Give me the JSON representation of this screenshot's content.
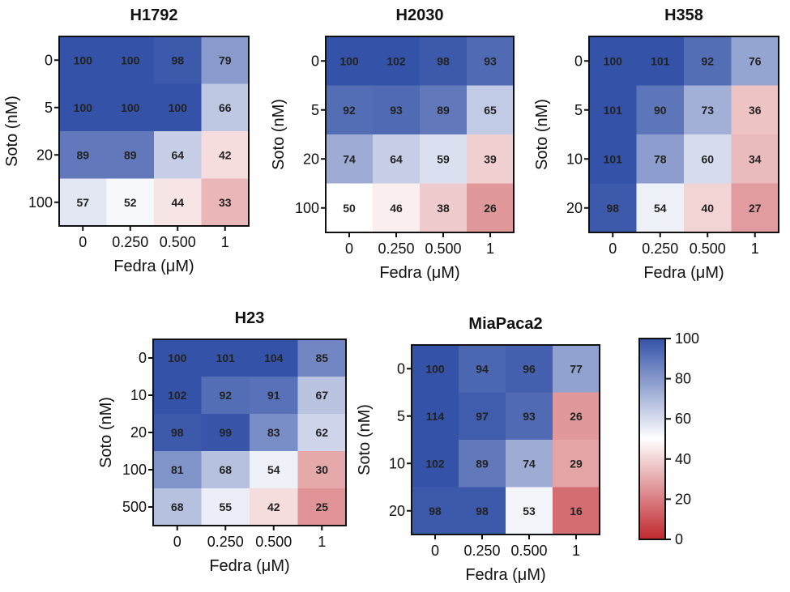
{
  "chart_data": [
    {
      "type": "heatmap",
      "title": "H1792",
      "xlabel": "Fedra (μM)",
      "ylabel": "Soto (nM)",
      "x_categories": [
        "0",
        "0.250",
        "0.500",
        "1"
      ],
      "y_categories": [
        "0",
        "5",
        "20",
        "100"
      ],
      "values": [
        [
          100,
          100,
          98,
          79
        ],
        [
          100,
          100,
          100,
          66
        ],
        [
          89,
          89,
          64,
          42
        ],
        [
          57,
          52,
          44,
          33
        ]
      ]
    },
    {
      "type": "heatmap",
      "title": "H2030",
      "xlabel": "Fedra (μM)",
      "ylabel": "Soto (nM)",
      "x_categories": [
        "0",
        "0.250",
        "0.500",
        "1"
      ],
      "y_categories": [
        "0",
        "5",
        "20",
        "100"
      ],
      "values": [
        [
          100,
          102,
          98,
          93
        ],
        [
          92,
          93,
          89,
          65
        ],
        [
          74,
          64,
          59,
          39
        ],
        [
          50,
          46,
          38,
          26
        ]
      ]
    },
    {
      "type": "heatmap",
      "title": "H358",
      "xlabel": "Fedra (μM)",
      "ylabel": "Soto (nM)",
      "x_categories": [
        "0",
        "0.250",
        "0.500",
        "1"
      ],
      "y_categories": [
        "0",
        "5",
        "10",
        "20"
      ],
      "values": [
        [
          100,
          101,
          92,
          76
        ],
        [
          101,
          90,
          73,
          36
        ],
        [
          101,
          78,
          60,
          34
        ],
        [
          98,
          54,
          40,
          27
        ]
      ]
    },
    {
      "type": "heatmap",
      "title": "H23",
      "xlabel": "Fedra (μM)",
      "ylabel": "Soto (nM)",
      "x_categories": [
        "0",
        "0.250",
        "0.500",
        "1"
      ],
      "y_categories": [
        "0",
        "10",
        "20",
        "100",
        "500"
      ],
      "values": [
        [
          100,
          101,
          104,
          85
        ],
        [
          102,
          92,
          91,
          67
        ],
        [
          98,
          99,
          83,
          62
        ],
        [
          81,
          68,
          54,
          30
        ],
        [
          68,
          55,
          42,
          25
        ]
      ]
    },
    {
      "type": "heatmap",
      "title": "MiaPaca2",
      "xlabel": "Fedra (μM)",
      "ylabel": "Soto (nM)",
      "x_categories": [
        "0",
        "0.250",
        "0.500",
        "1"
      ],
      "y_categories": [
        "0",
        "5",
        "10",
        "20"
      ],
      "values": [
        [
          100,
          94,
          96,
          77
        ],
        [
          114,
          97,
          93,
          26
        ],
        [
          102,
          89,
          74,
          29
        ],
        [
          98,
          98,
          53,
          16
        ]
      ]
    }
  ],
  "colorbar": {
    "range": [
      0,
      100
    ],
    "ticks": [
      "100",
      "80",
      "60",
      "40",
      "20",
      "0"
    ],
    "colors": {
      "low": "#c0282e",
      "mid": "#ffffff",
      "high": "#3452a8"
    }
  }
}
